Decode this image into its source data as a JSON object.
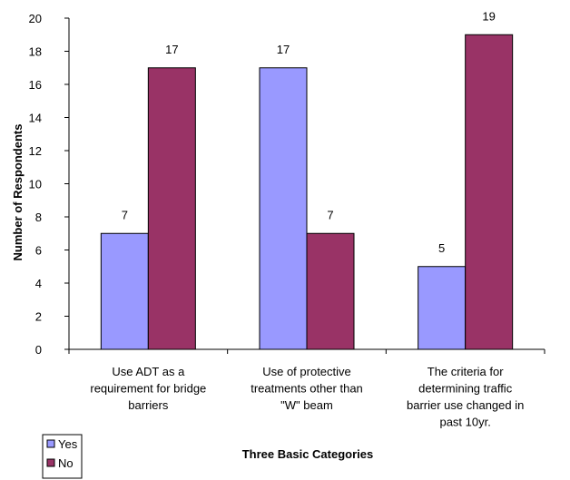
{
  "chart_data": {
    "type": "bar",
    "title": "",
    "xlabel": "Three Basic Categories",
    "ylabel": "Number of Respondents",
    "ylim": [
      0,
      20
    ],
    "ytick_step": 2,
    "grid": false,
    "legend_position": "bottom-left",
    "categories": [
      [
        "Use ADT as a",
        "requirement for bridge",
        "barriers"
      ],
      [
        "Use of protective",
        "treatments other than",
        "\"W\" beam"
      ],
      [
        "The criteria for",
        "determining traffic",
        "barrier use changed in",
        "past 10yr."
      ]
    ],
    "series": [
      {
        "name": "Yes",
        "color": "#9999ff",
        "values": [
          7,
          17,
          5
        ]
      },
      {
        "name": "No",
        "color": "#993366",
        "values": [
          17,
          7,
          19
        ]
      }
    ]
  }
}
